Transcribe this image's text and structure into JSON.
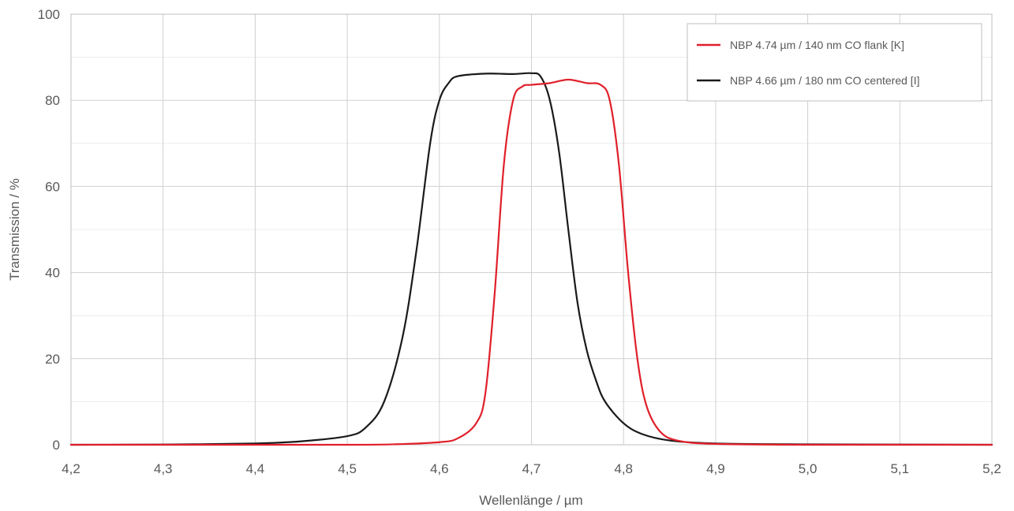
{
  "chart_data": {
    "type": "line",
    "xlabel": "Wellenlänge / µm",
    "ylabel": "Transmission / %",
    "xlim": [
      4.2,
      5.2
    ],
    "ylim": [
      0,
      100
    ],
    "x_ticks": [
      4.2,
      4.3,
      4.4,
      4.5,
      4.6,
      4.7,
      4.8,
      4.9,
      5.0,
      5.1,
      5.2
    ],
    "x_tick_labels": [
      "4,2",
      "4,3",
      "4,4",
      "4,5",
      "4,6",
      "4,7",
      "4,8",
      "4,9",
      "5,0",
      "5,1",
      "5,2"
    ],
    "y_ticks": [
      0,
      20,
      40,
      60,
      80,
      100
    ],
    "y_tick_labels": [
      "0",
      "20",
      "40",
      "60",
      "80",
      "100"
    ],
    "grid": true,
    "legend_position": "top-right",
    "series": [
      {
        "name": "NBP 4.74 µm / 140 nm CO flank [K]",
        "color": "#e0202a",
        "points": [
          [
            4.2,
            0
          ],
          [
            4.4,
            0
          ],
          [
            4.5,
            0
          ],
          [
            4.55,
            0.1
          ],
          [
            4.6,
            0.6
          ],
          [
            4.62,
            1.5
          ],
          [
            4.64,
            5
          ],
          [
            4.65,
            12
          ],
          [
            4.66,
            35
          ],
          [
            4.67,
            65
          ],
          [
            4.68,
            80
          ],
          [
            4.69,
            83.2
          ],
          [
            4.7,
            83.6
          ],
          [
            4.72,
            84
          ],
          [
            4.74,
            84.8
          ],
          [
            4.76,
            84
          ],
          [
            4.775,
            83.6
          ],
          [
            4.785,
            80
          ],
          [
            4.795,
            65
          ],
          [
            4.805,
            40
          ],
          [
            4.815,
            20
          ],
          [
            4.825,
            9
          ],
          [
            4.84,
            3
          ],
          [
            4.86,
            0.9
          ],
          [
            4.9,
            0.2
          ],
          [
            5.0,
            0
          ],
          [
            5.2,
            0
          ]
        ]
      },
      {
        "name": "NBP 4.66 µm / 180 nm CO centered [I]",
        "color": "#1a1a1a",
        "points": [
          [
            4.2,
            0
          ],
          [
            4.3,
            0.05
          ],
          [
            4.4,
            0.3
          ],
          [
            4.45,
            0.8
          ],
          [
            4.5,
            2
          ],
          [
            4.52,
            4
          ],
          [
            4.54,
            10
          ],
          [
            4.56,
            25
          ],
          [
            4.575,
            45
          ],
          [
            4.59,
            70
          ],
          [
            4.6,
            80
          ],
          [
            4.61,
            84
          ],
          [
            4.62,
            85.6
          ],
          [
            4.65,
            86.2
          ],
          [
            4.68,
            86.1
          ],
          [
            4.7,
            86.3
          ],
          [
            4.71,
            85.5
          ],
          [
            4.72,
            80
          ],
          [
            4.73,
            68
          ],
          [
            4.74,
            50
          ],
          [
            4.75,
            33
          ],
          [
            4.76,
            22
          ],
          [
            4.77,
            15
          ],
          [
            4.78,
            10
          ],
          [
            4.8,
            5
          ],
          [
            4.82,
            2.5
          ],
          [
            4.85,
            1
          ],
          [
            4.9,
            0.3
          ],
          [
            5.0,
            0.1
          ],
          [
            5.2,
            0
          ]
        ]
      }
    ]
  }
}
